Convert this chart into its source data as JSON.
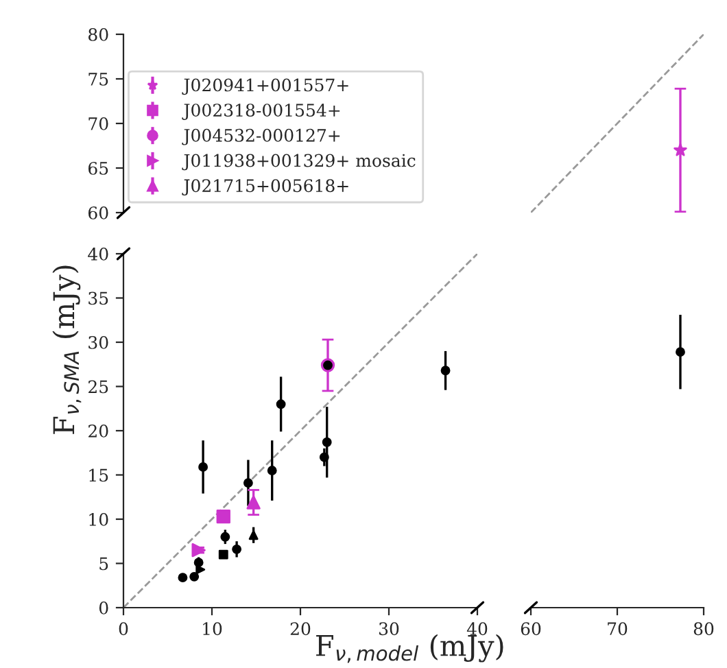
{
  "chart_data": [
    {
      "type": "scatter",
      "xlim": [
        0,
        40
      ],
      "ylim": [
        60,
        80
      ],
      "yticks": [
        60,
        65,
        70,
        75,
        80
      ],
      "tick_labels": "y"
    },
    {
      "type": "scatter",
      "xlim": [
        60,
        80
      ],
      "ylim": [
        60,
        80
      ],
      "tick_labels": false,
      "series": [
        {
          "type": "line",
          "color": "#999999",
          "line_style": "dashed",
          "marker": "none",
          "x": [
            60,
            80
          ],
          "values": [
            60,
            80
          ]
        },
        {
          "name": "J020941+001557+",
          "color": "#cc33cc",
          "marker": "star",
          "x": [
            77.3
          ],
          "values": [
            67.0
          ],
          "errors": [
            6.9
          ]
        }
      ]
    },
    {
      "type": "scatter",
      "xlim": [
        0,
        40
      ],
      "ylim": [
        0,
        40
      ],
      "xticks": [
        0,
        10,
        20,
        30,
        40
      ],
      "yticks": [
        0,
        5,
        10,
        15,
        20,
        25,
        30,
        35,
        40
      ],
      "xlabel": "F$_{ν,model}$ (mJy)",
      "ylabel": "F$_{ν,SMA}$ (mJy)",
      "legend": "top left",
      "series": [
        {
          "type": "line",
          "color": "#999999",
          "line_style": "dashed",
          "marker": "none",
          "x": [
            0,
            40
          ],
          "values": [
            0,
            40
          ]
        },
        {
          "color": "#000000",
          "marker": "circle",
          "x": [
            6.7,
            8.0,
            8.5,
            9.0,
            11.5,
            12.8,
            14.1,
            16.8,
            17.8,
            22.7,
            23.0,
            23.1,
            36.4
          ],
          "values": [
            3.4,
            3.5,
            5.1,
            15.9,
            8.0,
            6.6,
            14.1,
            15.5,
            23.0,
            17.0,
            18.7,
            27.4,
            26.8
          ],
          "errors": [
            null,
            0.3,
            0.6,
            3.0,
            0.8,
            0.9,
            2.6,
            3.4,
            3.1,
            1.0,
            4.0,
            null,
            2.2
          ]
        },
        {
          "color": "#000000",
          "marker": "square",
          "x": [
            11.3
          ],
          "values": [
            6.0
          ]
        },
        {
          "color": "#000000",
          "marker": "triangle",
          "x": [
            14.7
          ],
          "values": [
            8.2
          ],
          "errors": [
            0.9
          ]
        },
        {
          "color": "#000000",
          "marker": "triangle-right",
          "x": [
            8.7
          ],
          "values": [
            4.3
          ]
        },
        {
          "name": "J002318-001554+",
          "color": "#cc33cc",
          "marker": "square",
          "x": [
            11.3
          ],
          "values": [
            10.3
          ],
          "errors": [
            0.6
          ]
        },
        {
          "name": "J004532-000127+",
          "color": "#cc33cc",
          "marker": "circle",
          "x": [
            23.1
          ],
          "values": [
            27.4
          ],
          "errors": [
            2.9
          ]
        },
        {
          "name": "J011938+001329+ mosaic",
          "color": "#cc33cc",
          "marker": "triangle-right",
          "x": [
            8.5
          ],
          "values": [
            6.5
          ],
          "errors": [
            0.3
          ]
        },
        {
          "name": "J021715+005618+",
          "color": "#cc33cc",
          "marker": "triangle",
          "x": [
            14.7
          ],
          "values": [
            11.9
          ],
          "errors": [
            1.4
          ]
        }
      ]
    },
    {
      "type": "scatter",
      "xlim": [
        60,
        80
      ],
      "ylim": [
        0,
        40
      ],
      "xticks": [
        60,
        70,
        80
      ],
      "tick_labels": "x",
      "series": [
        {
          "color": "#000000",
          "marker": "circle",
          "x": [
            77.3
          ],
          "values": [
            28.9
          ],
          "errors": [
            4.2
          ]
        }
      ]
    }
  ]
}
